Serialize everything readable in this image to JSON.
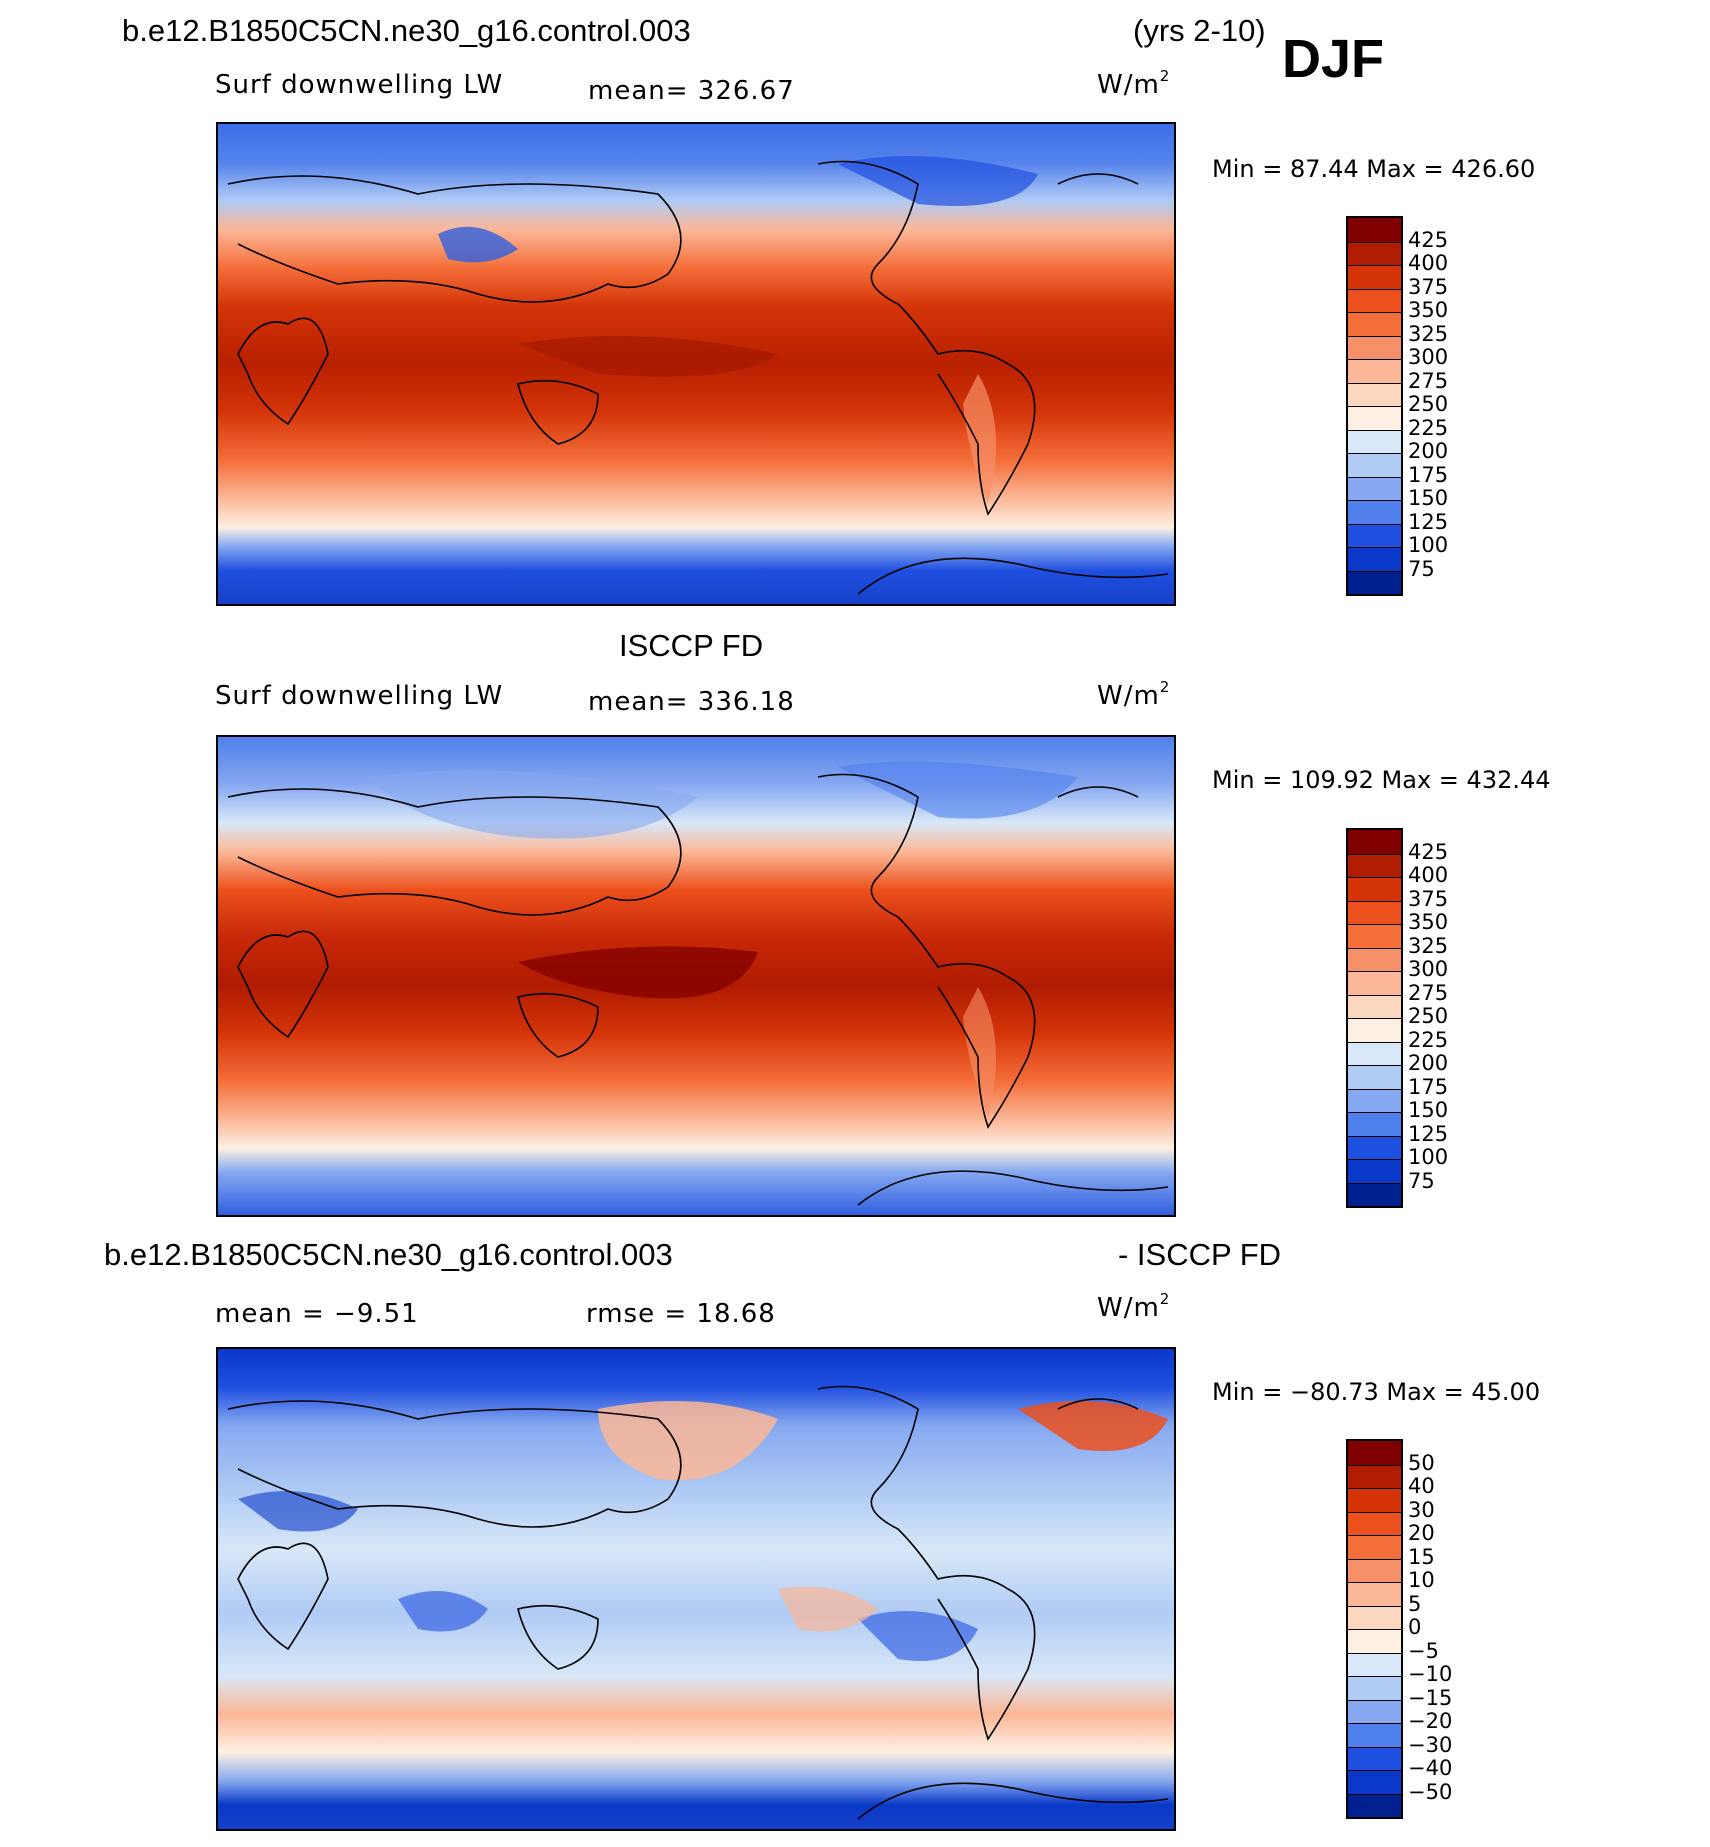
{
  "header": {
    "case_title": "b.e12.B1850C5CN.ne30_g16.control.003",
    "years": "(yrs 2-10)",
    "season": "DJF"
  },
  "panels": [
    {
      "id": "model",
      "variable": "Surf downwelling LW",
      "stat": "mean=  326.67",
      "units": "W/m",
      "units_sup": "2",
      "minmax": "Min =   87.44  Max  =  426.60",
      "colorbar": {
        "labels": [
          "425",
          "400",
          "375",
          "350",
          "325",
          "300",
          "275",
          "250",
          "225",
          "200",
          "175",
          "150",
          "125",
          "100",
          "75"
        ],
        "colors": [
          "#800000",
          "#b01c00",
          "#d43408",
          "#ec501c",
          "#f46e3a",
          "#f69068",
          "#fbb797",
          "#fcd7c0",
          "#fdf0e2",
          "#d8e8f8",
          "#b0cbf4",
          "#86a8f0",
          "#5080ec",
          "#2050e0",
          "#0a38c8",
          "#002090"
        ]
      }
    },
    {
      "id": "obs",
      "title": "ISCCP FD",
      "variable": "Surf downwelling LW",
      "stat": "mean=  336.18",
      "units": "W/m",
      "units_sup": "2",
      "minmax": "Min  =  109.92  Max  =  432.44",
      "colorbar": {
        "labels": [
          "425",
          "400",
          "375",
          "350",
          "325",
          "300",
          "275",
          "250",
          "225",
          "200",
          "175",
          "150",
          "125",
          "100",
          "75"
        ],
        "colors": [
          "#800000",
          "#b01c00",
          "#d43408",
          "#ec501c",
          "#f46e3a",
          "#f69068",
          "#fbb797",
          "#fcd7c0",
          "#fdf0e2",
          "#d8e8f8",
          "#b0cbf4",
          "#86a8f0",
          "#5080ec",
          "#2050e0",
          "#0a38c8",
          "#002090"
        ]
      }
    },
    {
      "id": "diff",
      "title_left": "b.e12.B1850C5CN.ne30_g16.control.003",
      "title_right": "- ISCCP FD",
      "stat_mean": "mean  =    −9.51",
      "stat_rmse": "rmse  =    18.68",
      "units": "W/m",
      "units_sup": "2",
      "minmax": "Min  =  −80.73  Max  =     45.00",
      "colorbar": {
        "labels": [
          "50",
          "40",
          "30",
          "20",
          "15",
          "10",
          "5",
          "0",
          "−5",
          "−10",
          "−15",
          "−20",
          "−30",
          "−40",
          "−50"
        ],
        "colors": [
          "#800000",
          "#b01c00",
          "#d43408",
          "#ec501c",
          "#f46e3a",
          "#f69068",
          "#fbb797",
          "#fcd7c0",
          "#fdf0e2",
          "#d8e8f8",
          "#b0cbf4",
          "#86a8f0",
          "#5080ec",
          "#2050e0",
          "#0a38c8",
          "#002090"
        ]
      }
    }
  ]
}
